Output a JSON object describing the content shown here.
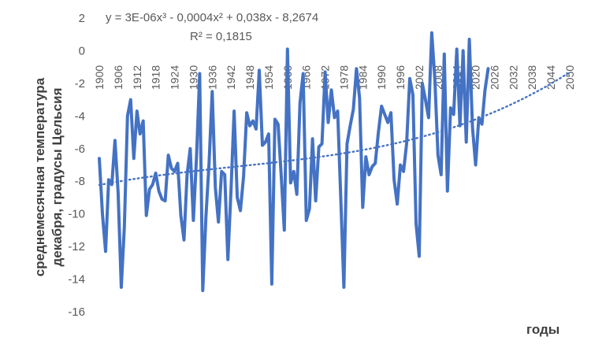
{
  "chart_data": {
    "type": "line",
    "title": "",
    "trendline_equation": "y = 3E-06x³ - 0,0004x² + 0,038x - 8,2674",
    "r_squared": "R² = 0,1815",
    "ylabel_line1": "среднемесячная температура",
    "ylabel_line2": "декабря, градусы Цельсия",
    "xlabel": "годы",
    "xlim": [
      1900,
      2050
    ],
    "ylim": [
      -16,
      2
    ],
    "y_ticks": [
      2,
      0,
      -2,
      -4,
      -6,
      -8,
      -10,
      -12,
      -14,
      -16
    ],
    "y_tick_labels": [
      "2",
      "0",
      "-2",
      "-4",
      "-6",
      "-8",
      "-10",
      "-12",
      "-14",
      "-16"
    ],
    "x_ticks": [
      1900,
      1906,
      1912,
      1918,
      1924,
      1930,
      1936,
      1942,
      1948,
      1954,
      1960,
      1966,
      1972,
      1978,
      1984,
      1990,
      1996,
      2002,
      2008,
      2014,
      2020,
      2026,
      2032,
      2038,
      2044,
      2050
    ],
    "x_tick_labels": [
      "1900",
      "1906",
      "1912",
      "1918",
      "1924",
      "1930",
      "1936",
      "1942",
      "1948",
      "1954",
      "1960",
      "1966",
      "1972",
      "1978",
      "1984",
      "1990",
      "1996",
      "2002",
      "2008",
      "2014",
      "2020",
      "2026",
      "2032",
      "2038",
      "2044",
      "2050"
    ],
    "grid": false,
    "legend": "none",
    "trendline": {
      "style": "dotted",
      "x_start": 1900,
      "x_end": 2050,
      "coefficients": [
        3e-06,
        -0.0004,
        0.038,
        -8.2674
      ]
    },
    "series": [
      {
        "color": "#4472C4",
        "x_start": 1900,
        "x_step": 1,
        "values": [
          -6.6,
          -10,
          -12.3,
          -7.9,
          -8.2,
          -5.5,
          -8.7,
          -14.5,
          -10.8,
          -4,
          -3,
          -6.6,
          -3.7,
          -5.1,
          -4.3,
          -10.1,
          -8.5,
          -8.2,
          -7.5,
          -8.6,
          -9.1,
          -9.2,
          -6.4,
          -7.2,
          -7.4,
          -6.9,
          -10.1,
          -11.6,
          -7.6,
          -6,
          -10.4,
          -6.5,
          -1.4,
          -14.7,
          -10.2,
          -6.9,
          -2.5,
          -8.4,
          -10.5,
          -7.4,
          -7.6,
          -12.8,
          -8.5,
          -3.7,
          -9,
          -9.8,
          -7.7,
          -3.8,
          -4.6,
          -4.3,
          -4.8,
          -1.2,
          -5.8,
          -5.6,
          -5.1,
          -14.3,
          -4.2,
          -4.5,
          -7.6,
          -11,
          0.1,
          -8.1,
          -7.4,
          -8.8,
          -3.2,
          -1.4,
          -10.4,
          -9.7,
          -5.4,
          -9.2,
          -5.9,
          -5.7,
          -1.3,
          -4.4,
          -2.4,
          -4.1,
          -3.7,
          -9.1,
          -14.5,
          -5.7,
          -4.6,
          -3.6,
          -1.1,
          -2.9,
          -9.6,
          -6.5,
          -7.6,
          -7.1,
          -6.9,
          -5,
          -3.4,
          -3.9,
          -4.4,
          -3.8,
          -7.9,
          -9.4,
          -7,
          -7.4,
          -5.7,
          -1.7,
          -2.7,
          -10.6,
          -12.6,
          -2,
          -3,
          -4.1,
          1.1,
          -1.8,
          -6.4,
          -7.6,
          -0.2,
          -8.6,
          -3.5,
          -3.9,
          0.1,
          -4.6,
          0,
          -5.6,
          0.7,
          -4.7,
          -7,
          -4.1,
          -4.5,
          -2.4,
          -1.1
        ]
      }
    ]
  }
}
